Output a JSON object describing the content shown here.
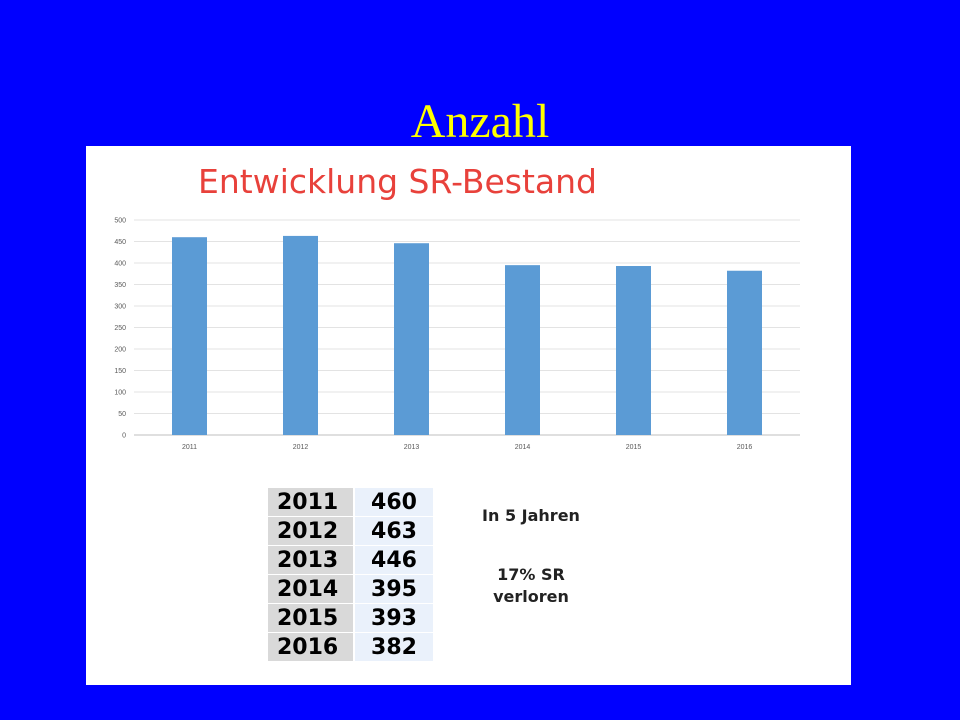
{
  "slide": {
    "title": "Anzahl"
  },
  "chart_data": {
    "type": "bar",
    "title": "Entwicklung SR-Bestand",
    "xlabel": "",
    "ylabel": "",
    "categories": [
      "2011",
      "2012",
      "2013",
      "2014",
      "2015",
      "2016"
    ],
    "values": [
      460,
      463,
      446,
      395,
      393,
      382
    ],
    "ylim": [
      0,
      500
    ],
    "yticks": [
      0,
      50,
      100,
      150,
      200,
      250,
      300,
      350,
      400,
      450,
      500
    ],
    "grid": true,
    "bar_color": "#5b9bd5"
  },
  "table": {
    "rows": [
      {
        "year": "2011",
        "value": "460"
      },
      {
        "year": "2012",
        "value": "463"
      },
      {
        "year": "2013",
        "value": "446"
      },
      {
        "year": "2014",
        "value": "395"
      },
      {
        "year": "2015",
        "value": "393"
      },
      {
        "year": "2016",
        "value": "382"
      }
    ]
  },
  "notes": {
    "line1": "In 5 Jahren",
    "line2": "17% SR",
    "line3": "verloren"
  },
  "colors": {
    "background": "#0000ff",
    "slide_title": "#ffff00",
    "chart_title": "#e8413b",
    "bar": "#5b9bd5"
  }
}
